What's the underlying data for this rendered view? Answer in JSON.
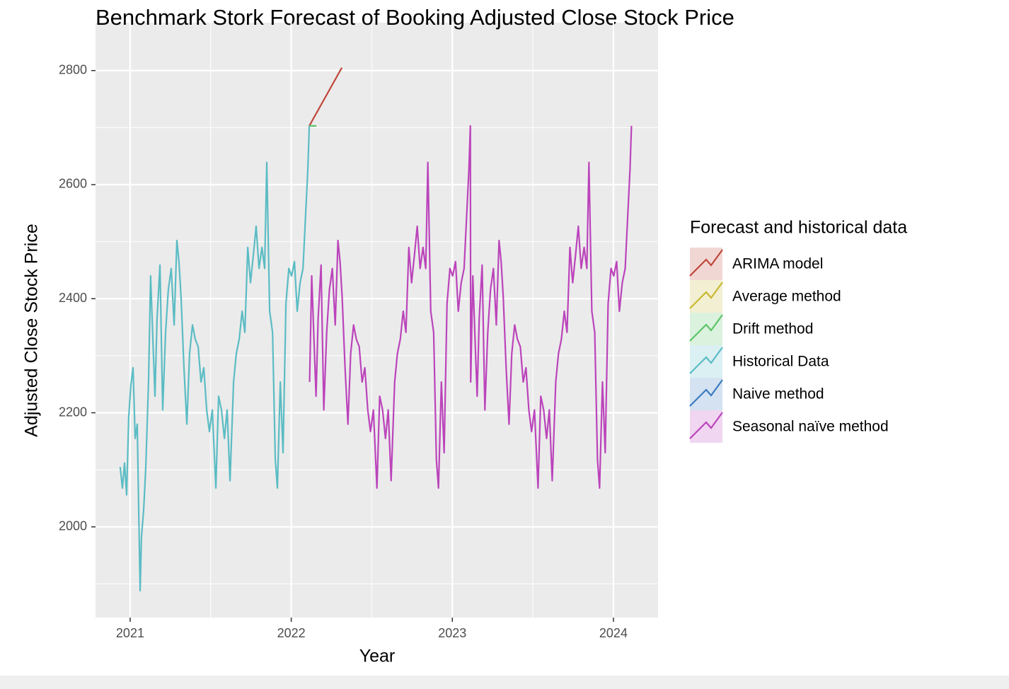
{
  "chart_data": {
    "type": "line",
    "title": "Benchmark Stork Forecast of Booking Adjusted Close Stock Price",
    "x_label": "Year",
    "y_label": "Adjusted Close Stock Price",
    "legend_title": "Forecast and historical data",
    "xlim": [
      2020.785,
      2024.277
    ],
    "xticks": [
      2021,
      2022,
      2023,
      2024
    ],
    "x_minor_ticks": [
      2021.5,
      2022.5,
      2023.5
    ],
    "ylim": [
      1841,
      2884
    ],
    "yticks": [
      2000,
      2200,
      2400,
      2600,
      2800
    ],
    "y_minor_ticks": [
      1900,
      2100,
      2300,
      2500,
      2700
    ],
    "grid": true,
    "legend_position": "right",
    "series": [
      {
        "name": "ARIMA model",
        "color": "#c0483c",
        "x": [
          2022.112,
          2022.314
        ],
        "values": [
          2703,
          2805
        ]
      },
      {
        "name": "Average method",
        "color": "#c8b830",
        "x": [],
        "values": []
      },
      {
        "name": "Drift method",
        "color": "#5cc46a",
        "x": [
          2022.112,
          2022.156
        ],
        "values": [
          2703,
          2703
        ]
      },
      {
        "name": "Historical Data",
        "color": "#5bbcc4",
        "x": [
          2020.938,
          2020.952,
          2020.965,
          2020.978,
          2020.991,
          2021.004,
          2021.018,
          2021.031,
          2021.044,
          2021.053,
          2021.062,
          2021.07,
          2021.084,
          2021.097,
          2021.114,
          2021.127,
          2021.141,
          2021.154,
          2021.167,
          2021.185,
          2021.202,
          2021.22,
          2021.237,
          2021.255,
          2021.273,
          2021.29,
          2021.303,
          2021.316,
          2021.334,
          2021.352,
          2021.369,
          2021.387,
          2021.404,
          2021.422,
          2021.44,
          2021.457,
          2021.475,
          2021.492,
          2021.51,
          2021.532,
          2021.549,
          2021.567,
          2021.585,
          2021.602,
          2021.62,
          2021.642,
          2021.659,
          2021.677,
          2021.695,
          2021.712,
          2021.73,
          2021.747,
          2021.765,
          2021.782,
          2021.8,
          2021.818,
          2021.835,
          2021.848,
          2021.866,
          2021.884,
          2021.901,
          2021.914,
          2021.932,
          2021.949,
          2021.967,
          2021.985,
          2022.002,
          2022.02,
          2022.037,
          2022.055,
          2022.073,
          2022.09,
          2022.103,
          2022.112
        ],
        "values": [
          2105,
          2068,
          2112,
          2056,
          2192,
          2248,
          2279,
          2155,
          2180,
          2031,
          1888,
          1981,
          2031,
          2105,
          2254,
          2440,
          2329,
          2229,
          2366,
          2459,
          2205,
          2341,
          2416,
          2453,
          2354,
          2502,
          2465,
          2403,
          2279,
          2180,
          2304,
          2354,
          2329,
          2316,
          2254,
          2279,
          2205,
          2167,
          2205,
          2068,
          2229,
          2205,
          2155,
          2205,
          2081,
          2254,
          2304,
          2329,
          2378,
          2341,
          2490,
          2428,
          2477,
          2527,
          2453,
          2490,
          2453,
          2639,
          2378,
          2341,
          2118,
          2068,
          2254,
          2130,
          2391,
          2453,
          2440,
          2465,
          2378,
          2428,
          2453,
          2552,
          2627,
          2703
        ]
      },
      {
        "name": "Naive method",
        "color": "#3c7cc0",
        "x": [],
        "values": []
      },
      {
        "name": "Seasonal naïve method",
        "color": "#bb44bb",
        "x": [
          2022.114,
          2022.127,
          2022.141,
          2022.154,
          2022.167,
          2022.185,
          2022.202,
          2022.22,
          2022.237,
          2022.255,
          2022.273,
          2022.29,
          2022.303,
          2022.316,
          2022.334,
          2022.352,
          2022.369,
          2022.387,
          2022.404,
          2022.422,
          2022.44,
          2022.457,
          2022.475,
          2022.492,
          2022.51,
          2022.532,
          2022.549,
          2022.567,
          2022.585,
          2022.602,
          2022.62,
          2022.642,
          2022.659,
          2022.677,
          2022.695,
          2022.712,
          2022.73,
          2022.747,
          2022.765,
          2022.782,
          2022.8,
          2022.818,
          2022.835,
          2022.848,
          2022.866,
          2022.884,
          2022.901,
          2022.914,
          2022.932,
          2022.949,
          2022.967,
          2022.985,
          2023.002,
          2023.02,
          2023.037,
          2023.055,
          2023.073,
          2023.09,
          2023.103,
          2023.112,
          2023.114,
          2023.127,
          2023.141,
          2023.154,
          2023.167,
          2023.185,
          2023.202,
          2023.22,
          2023.237,
          2023.255,
          2023.273,
          2023.29,
          2023.303,
          2023.316,
          2023.334,
          2023.352,
          2023.369,
          2023.387,
          2023.404,
          2023.422,
          2023.44,
          2023.457,
          2023.475,
          2023.492,
          2023.51,
          2023.532,
          2023.549,
          2023.567,
          2023.585,
          2023.602,
          2023.62,
          2023.642,
          2023.659,
          2023.677,
          2023.695,
          2023.712,
          2023.73,
          2023.747,
          2023.765,
          2023.782,
          2023.8,
          2023.818,
          2023.835,
          2023.848,
          2023.866,
          2023.884,
          2023.901,
          2023.914,
          2023.932,
          2023.949,
          2023.967,
          2023.985,
          2024.002,
          2024.02,
          2024.037,
          2024.055,
          2024.073,
          2024.09,
          2024.103,
          2024.112
        ],
        "values": [
          2254,
          2440,
          2329,
          2229,
          2366,
          2459,
          2205,
          2341,
          2416,
          2453,
          2354,
          2502,
          2465,
          2403,
          2279,
          2180,
          2304,
          2354,
          2329,
          2316,
          2254,
          2279,
          2205,
          2167,
          2205,
          2068,
          2229,
          2205,
          2155,
          2205,
          2081,
          2254,
          2304,
          2329,
          2378,
          2341,
          2490,
          2428,
          2477,
          2527,
          2453,
          2490,
          2453,
          2639,
          2378,
          2341,
          2118,
          2068,
          2254,
          2130,
          2391,
          2453,
          2440,
          2465,
          2378,
          2428,
          2453,
          2552,
          2627,
          2703,
          2254,
          2440,
          2329,
          2229,
          2366,
          2459,
          2205,
          2341,
          2416,
          2453,
          2354,
          2502,
          2465,
          2403,
          2279,
          2180,
          2304,
          2354,
          2329,
          2316,
          2254,
          2279,
          2205,
          2167,
          2205,
          2068,
          2229,
          2205,
          2155,
          2205,
          2081,
          2254,
          2304,
          2329,
          2378,
          2341,
          2490,
          2428,
          2477,
          2527,
          2453,
          2490,
          2453,
          2639,
          2378,
          2341,
          2118,
          2068,
          2254,
          2130,
          2391,
          2453,
          2440,
          2465,
          2378,
          2428,
          2453,
          2552,
          2627,
          2703
        ]
      }
    ]
  }
}
